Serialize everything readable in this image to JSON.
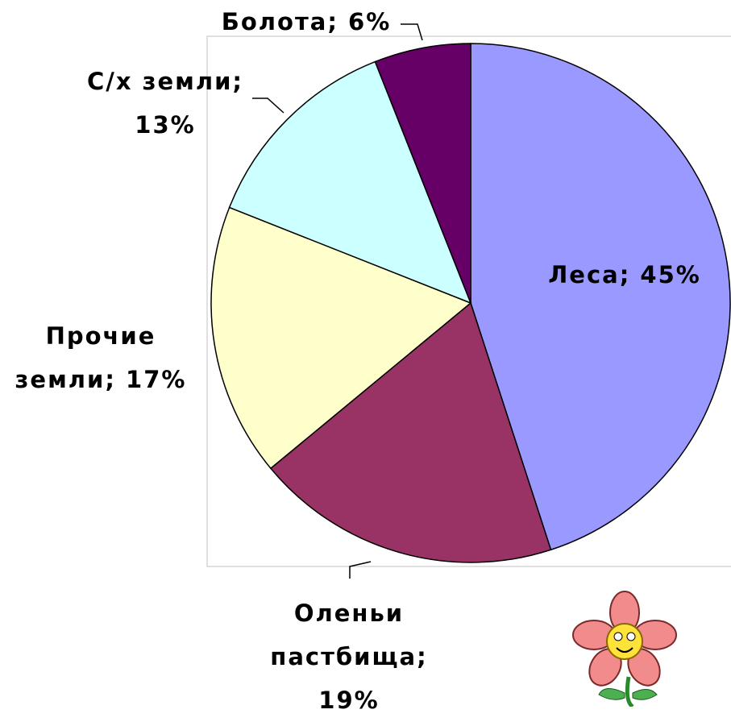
{
  "chart_data": {
    "type": "pie",
    "categories": [
      "Леса; 45%",
      "Оленьи пастбища; 19%",
      "Прочие земли; 17%",
      "С/х земли; 13%",
      "Болота; 6%"
    ],
    "values": [
      45,
      19,
      17,
      13,
      6
    ],
    "colors": [
      "#9999ff",
      "#993366",
      "#ffffcc",
      "#ccffff",
      "#660066"
    ]
  }
}
